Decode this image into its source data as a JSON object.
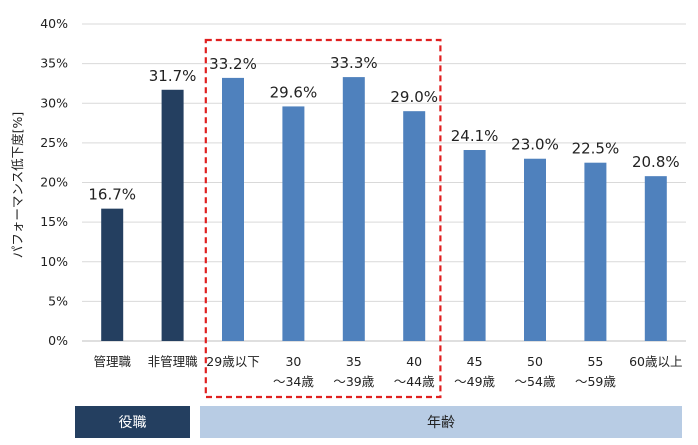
{
  "chart_data": {
    "type": "bar",
    "title": "",
    "xlabel": "",
    "ylabel": "パフォーマンス低下度[%]",
    "ylim": [
      0,
      40
    ],
    "yticks": [
      "0%",
      "5%",
      "10%",
      "15%",
      "20%",
      "25%",
      "30%",
      "35%",
      "40%"
    ],
    "grid": true,
    "categories": [
      {
        "line1": "管理職",
        "line2": ""
      },
      {
        "line1": "非管理職",
        "line2": ""
      },
      {
        "line1": "29歳以下",
        "line2": ""
      },
      {
        "line1": "30",
        "line2": "～34歳"
      },
      {
        "line1": "35",
        "line2": "～39歳"
      },
      {
        "line1": "40",
        "line2": "～44歳"
      },
      {
        "line1": "45",
        "line2": "～49歳"
      },
      {
        "line1": "50",
        "line2": "～54歳"
      },
      {
        "line1": "55",
        "line2": "～59歳"
      },
      {
        "line1": "60歳以上",
        "line2": ""
      }
    ],
    "values": [
      16.7,
      31.7,
      33.2,
      29.6,
      33.3,
      29.0,
      24.1,
      23.0,
      22.5,
      20.8
    ],
    "data_labels": [
      "16.7%",
      "31.7%",
      "33.2%",
      "29.6%",
      "33.3%",
      "29.0%",
      "24.1%",
      "23.0%",
      "22.5%",
      "20.8%"
    ],
    "bar_colors": [
      "#243f60",
      "#243f60",
      "#4f81bd",
      "#4f81bd",
      "#4f81bd",
      "#4f81bd",
      "#4f81bd",
      "#4f81bd",
      "#4f81bd",
      "#4f81bd"
    ],
    "highlight": {
      "from_index": 2,
      "to_index": 5,
      "color": "#e02020",
      "style": "dashed"
    },
    "groups": [
      {
        "label": "役職",
        "from_index": 0,
        "to_index": 1,
        "color": "#243f60"
      },
      {
        "label": "年齢",
        "from_index": 2,
        "to_index": 9,
        "color": "#b8cce4"
      }
    ]
  }
}
